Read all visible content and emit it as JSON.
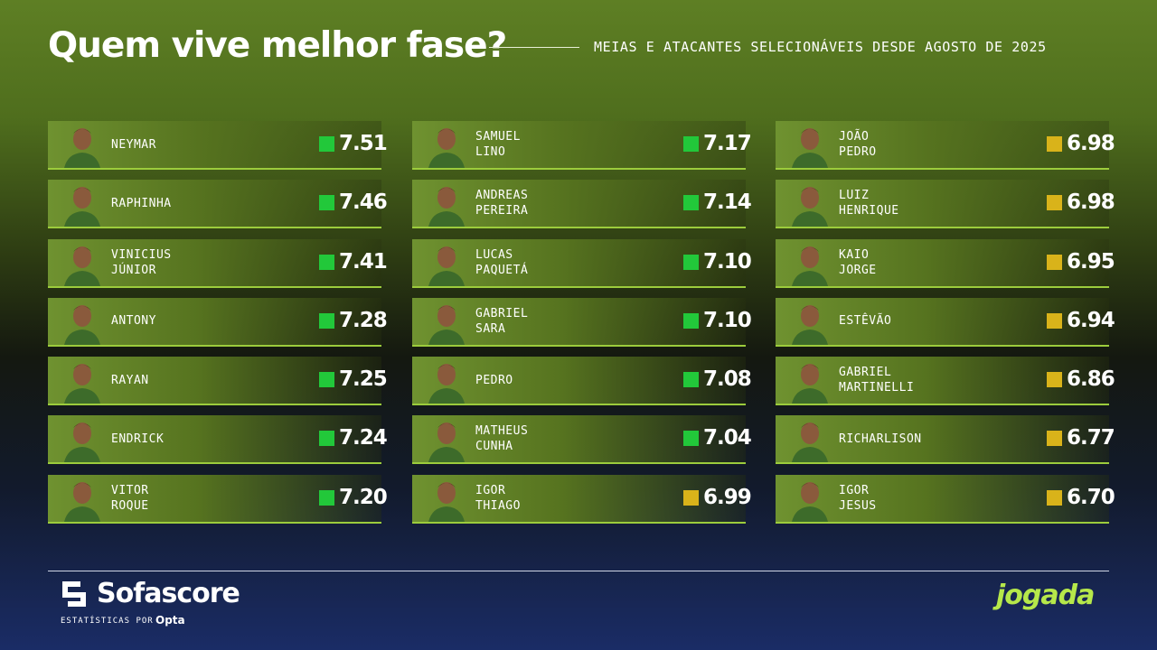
{
  "header": {
    "title": "Quem vive melhor fase?",
    "subtitle": "MEIAS E ATACANTES SELECIONÁVEIS DESDE AGOSTO DE 2025"
  },
  "columns": [
    [
      {
        "name": [
          "NEYMAR"
        ],
        "rating": "7.51",
        "badge_color": "#22c83a"
      },
      {
        "name": [
          "RAPHINHA"
        ],
        "rating": "7.46",
        "badge_color": "#22c83a"
      },
      {
        "name": [
          "VINICIUS",
          "JÚNIOR"
        ],
        "rating": "7.41",
        "badge_color": "#22c83a"
      },
      {
        "name": [
          "ANTONY"
        ],
        "rating": "7.28",
        "badge_color": "#22c83a"
      },
      {
        "name": [
          "RAYAN"
        ],
        "rating": "7.25",
        "badge_color": "#22c83a"
      },
      {
        "name": [
          "ENDRICK"
        ],
        "rating": "7.24",
        "badge_color": "#22c83a"
      },
      {
        "name": [
          "VITOR",
          "ROQUE"
        ],
        "rating": "7.20",
        "badge_color": "#22c83a"
      }
    ],
    [
      {
        "name": [
          "SAMUEL",
          "LINO"
        ],
        "rating": "7.17",
        "badge_color": "#22c83a"
      },
      {
        "name": [
          "ANDREAS",
          "PEREIRA"
        ],
        "rating": "7.14",
        "badge_color": "#22c83a"
      },
      {
        "name": [
          "LUCAS",
          "PAQUETÁ"
        ],
        "rating": "7.10",
        "badge_color": "#22c83a"
      },
      {
        "name": [
          "GABRIEL",
          "SARA"
        ],
        "rating": "7.10",
        "badge_color": "#22c83a"
      },
      {
        "name": [
          "PEDRO"
        ],
        "rating": "7.08",
        "badge_color": "#22c83a"
      },
      {
        "name": [
          "MATHEUS",
          "CUNHA"
        ],
        "rating": "7.04",
        "badge_color": "#22c83a"
      },
      {
        "name": [
          "IGOR",
          "THIAGO"
        ],
        "rating": "6.99",
        "badge_color": "#d9b31a"
      }
    ],
    [
      {
        "name": [
          "JOÃO",
          "PEDRO"
        ],
        "rating": "6.98",
        "badge_color": "#d9b31a"
      },
      {
        "name": [
          "LUIZ",
          "HENRIQUE"
        ],
        "rating": "6.98",
        "badge_color": "#d9b31a"
      },
      {
        "name": [
          "KAIO",
          "JORGE"
        ],
        "rating": "6.95",
        "badge_color": "#d9b31a"
      },
      {
        "name": [
          "ESTÊVÃO"
        ],
        "rating": "6.94",
        "badge_color": "#d9b31a"
      },
      {
        "name": [
          "GABRIEL",
          "MARTINELLI"
        ],
        "rating": "6.86",
        "badge_color": "#d9b31a"
      },
      {
        "name": [
          "RICHARLISON"
        ],
        "rating": "6.77",
        "badge_color": "#d9b31a"
      },
      {
        "name": [
          "IGOR",
          "JESUS"
        ],
        "rating": "6.70",
        "badge_color": "#d9b31a"
      }
    ]
  ],
  "footer": {
    "brand": "Sofascore",
    "credit": "ESTATÍSTICAS POR",
    "provider": "Opta",
    "partner": "jogada"
  }
}
